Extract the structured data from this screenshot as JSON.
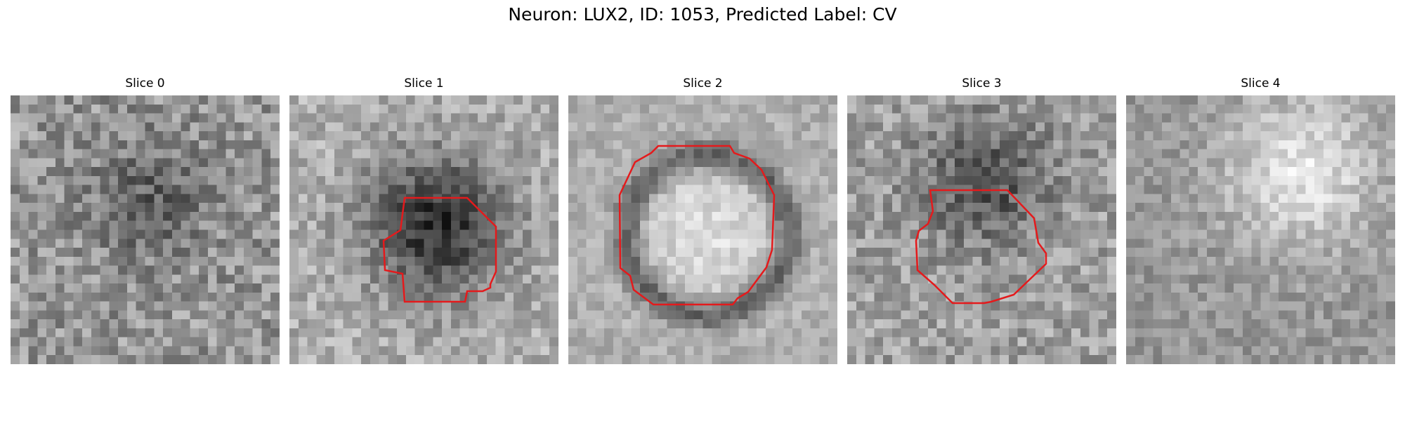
{
  "figure": {
    "title": "Neuron: LUX2, ID: 1053, Predicted Label: CV"
  },
  "slices": [
    {
      "label": "Slice 0",
      "has_contour": false
    },
    {
      "label": "Slice 1",
      "has_contour": true
    },
    {
      "label": "Slice 2",
      "has_contour": true
    },
    {
      "label": "Slice 3",
      "has_contour": true
    },
    {
      "label": "Slice 4",
      "has_contour": false
    }
  ],
  "colors": {
    "contour": "#e41a1c",
    "colormap": "grayscale"
  }
}
